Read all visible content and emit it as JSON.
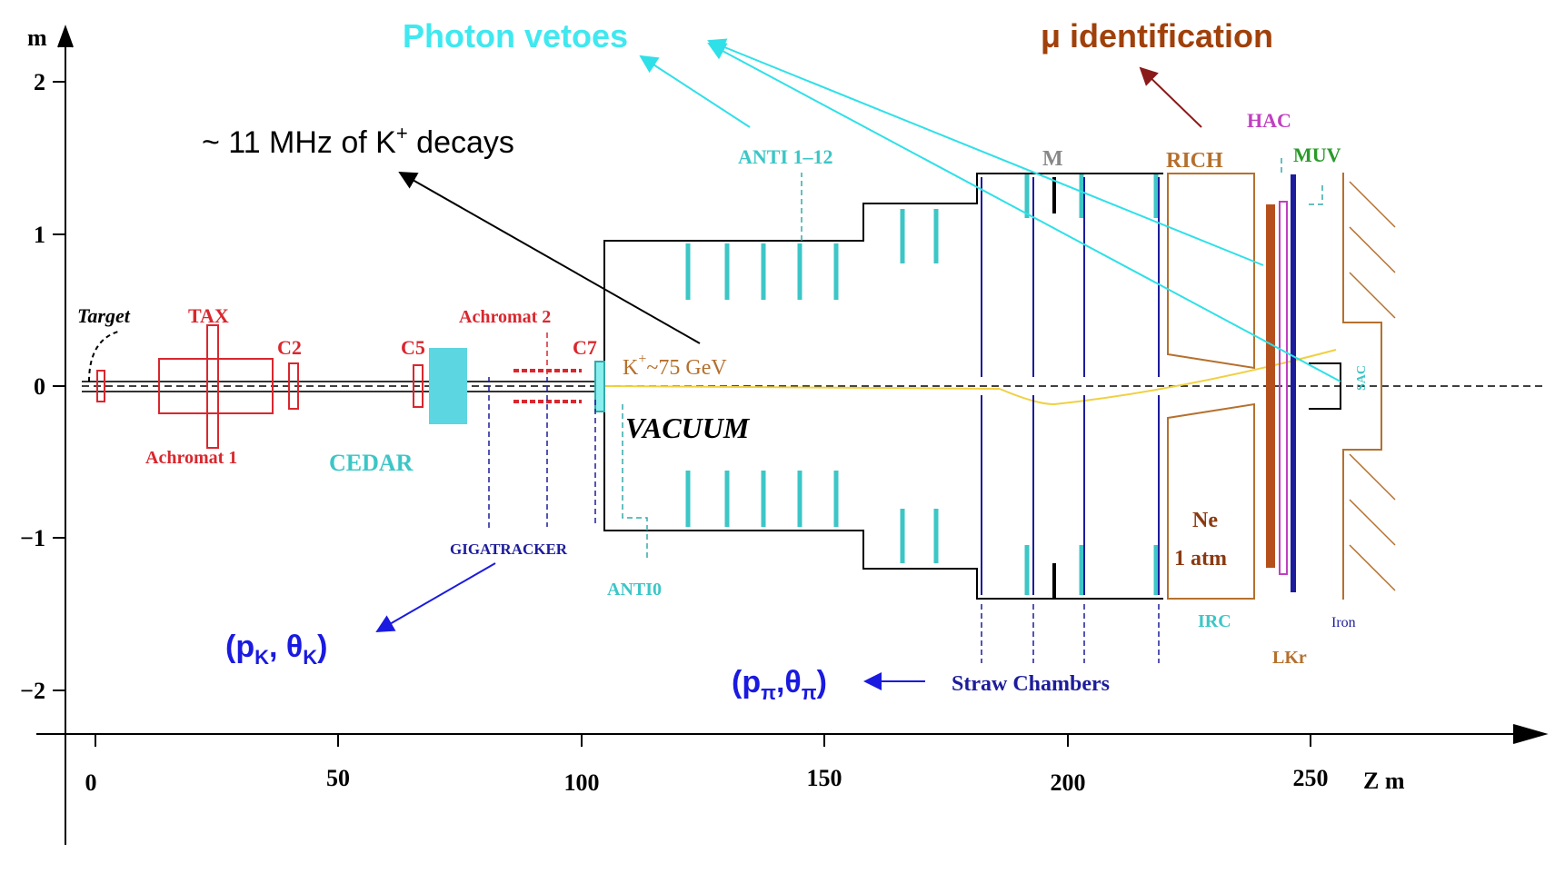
{
  "axis": {
    "y_label": "m",
    "x_label": "Z m",
    "x_ticks": [
      "0",
      "50",
      "100",
      "150",
      "200",
      "250"
    ],
    "y_ticks": [
      "2",
      "1",
      "0",
      "−1",
      "−2"
    ]
  },
  "annotations": {
    "photon_vetoes": "Photon vetoes",
    "mu_identification": "μ identification",
    "kaon_rate": {
      "prefix": "~ 11 MHz of K",
      "sup": "+",
      "suffix": " decays"
    },
    "kaon_kinematics": {
      "open": "(p",
      "sub1": "K",
      "mid": ", θ",
      "sub2": "K",
      "close": ")"
    },
    "pion_kinematics": {
      "open": "(p",
      "sub1": "π",
      "mid": ",θ",
      "sub2": "π",
      "close": ")"
    }
  },
  "components": {
    "target": "Target",
    "tax": "TAX",
    "c2": "C2",
    "c5": "C5",
    "c7": "C7",
    "achromat_1": "Achromat 1",
    "achromat_2": "Achromat 2",
    "cedar": "CEDAR",
    "beam": {
      "particle": "K",
      "sup": "+",
      "energy": "~75 GeV"
    },
    "vacuum": "VACUUM",
    "gigatracker": "GIGATRACKER",
    "anti0": "ANTI0",
    "anti_1_12": "ANTI 1–12",
    "magnet": "M",
    "rich": "RICH",
    "hac": "HAC",
    "muv": "MUV",
    "straw_chambers": "Straw Chambers",
    "neon": "Ne",
    "pressure": "1 atm",
    "irc": "IRC",
    "lkr": "LKr",
    "iron": "Iron",
    "sac": "SAC"
  }
}
